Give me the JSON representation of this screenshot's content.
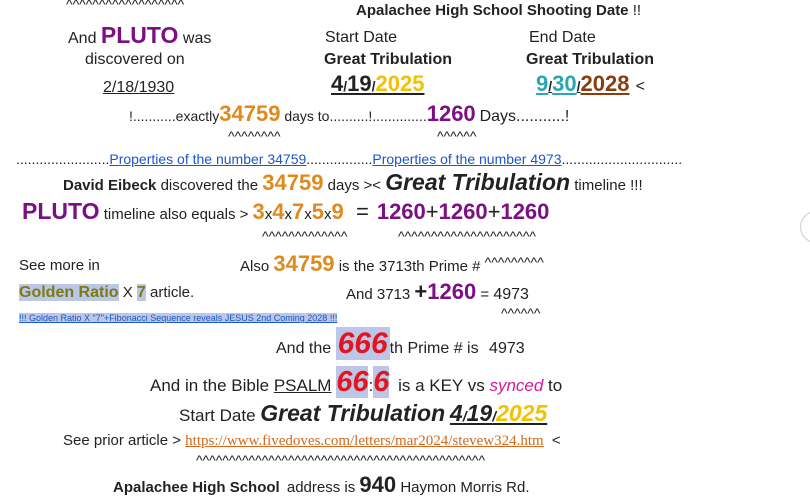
{
  "line_carets_top": "^^^^^^^^^^^^^^^^^^",
  "header": {
    "title": "Apalachee High School Shooting Date",
    "title_suffix": "!!"
  },
  "pluto_block": {
    "and": "And",
    "pluto": "PLUTO",
    "was": "was",
    "discovered_on": "discovered on",
    "date": "2/18/1930"
  },
  "start_col": {
    "label": "Start Date",
    "gt": "Great Tribulation",
    "month": "4",
    "sep1": "/",
    "day": "19",
    "sep2": "/",
    "year": "2025"
  },
  "end_col": {
    "label": "End Date",
    "gt": "Great Tribulation",
    "month": "9",
    "sep1": "/",
    "day": "30",
    "sep2": "/",
    "year": "2028",
    "tail": "<"
  },
  "exact_line": {
    "prefix": "!...........exactly",
    "num": "34759",
    "days_to": "days to..........!..............",
    "num2": "1260",
    "days": "Days...........!",
    "carets1": "^^^^^^^^",
    "carets2": "^^^^^^"
  },
  "props_line": {
    "dots1": "........................",
    "link1": "Properties of the number 34759",
    "dots2": ".................",
    "link2": "Properties of the number 4973",
    "dots3": "..............................."
  },
  "eibeck_line": {
    "name": "David Eibeck",
    "discovered_the": "discovered the",
    "num": "34759",
    "days": "days ><",
    "gt": "Great Tribulation",
    "timeline": "timeline !!!"
  },
  "pluto_line": {
    "pluto": "PLUTO",
    "text": "timeline also equals >",
    "d1": "3",
    "x1": "x",
    "d2": "4",
    "x2": "x",
    "d3": "7",
    "x3": "x",
    "d4": "5",
    "x4": "x",
    "d5": "9",
    "eq": "=",
    "n1": "1260",
    "plus1": "+",
    "n2": "1260",
    "plus2": "+",
    "n3": "1260",
    "carets1": "^^^^^^^^^^^^^",
    "carets2": "^^^^^^^^^^^^^^^^^^^^^"
  },
  "see_more": {
    "text": "See more in",
    "golden": "Golden Ratio",
    "x": "X",
    "seven": "7",
    "article": "article.",
    "small_link": "!!! Golden Ratio X \"7\"+Fibonacci Sequence reveals JESUS 2nd Coming 2028 !!!"
  },
  "also_block": {
    "also": "Also",
    "num": "34759",
    "is_the": "is the 3713th Prime #",
    "carets": "^^^^^^^^^",
    "and_text": "And 3713",
    "plus": "+",
    "num2": "1260",
    "eq": "=",
    "result": "4973",
    "carets2": "^^^^^^"
  },
  "prime_line": {
    "text1": "And the",
    "num": "666",
    "text2": "th Prime # is",
    "result": "4973"
  },
  "bible_line": {
    "text1": "And in the Bible",
    "psalm": "PSALM",
    "n1": "66",
    "colon": ":",
    "n2": "6",
    "text2": "is a KEY vs",
    "synced": "synced",
    "to": "to"
  },
  "start_line": {
    "label": "Start Date",
    "gt": "Great Tribulation",
    "month": "4",
    "sep1": "/",
    "day": "19",
    "sep2": "/",
    "year": "2025"
  },
  "prior_line": {
    "text": "See prior article >",
    "url": "https://www.fivedoves.com/letters/mar2024/stevew324.htm",
    "tail": "<",
    "carets": "^^^^^^^^^^^^^^^^^^^^^^^^^^^^^^^^^^^^^^^^^^^^"
  },
  "address_line": {
    "school": "Apalachee High School",
    "address_is": "address is",
    "num": "940",
    "street": "Haymon Morris Rd."
  }
}
